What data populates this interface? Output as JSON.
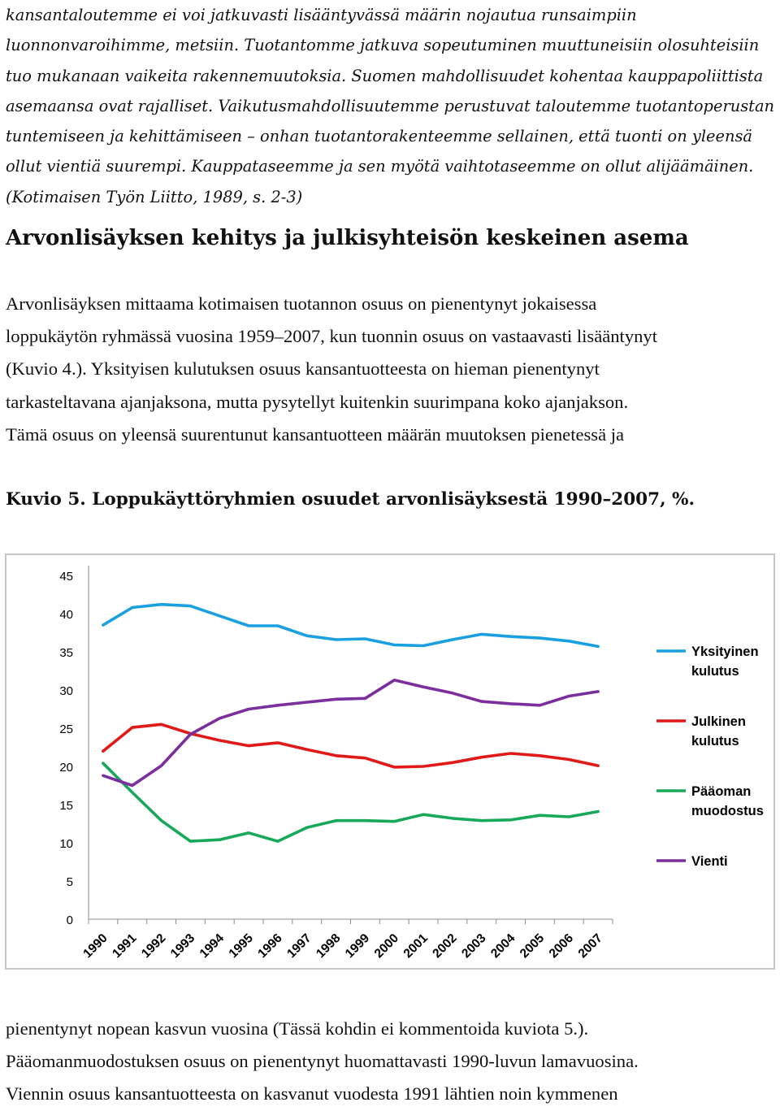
{
  "quote": {
    "lines": [
      "kansantaloutemme ei voi jatkuvasti lisääntyvässä määrin nojautua runsaimpiin",
      "luonnonvaroihimme, metsiin. Tuotantomme jatkuva sopeutuminen muuttuneisiin olosuhteisiin",
      "tuo mukanaan vaikeita rakennemuutoksia. Suomen mahdollisuudet kohentaa kauppapoliittista",
      "asemaansa ovat rajalliset. Vaikutusmahdollisuutemme perustuvat taloutemme tuotantoperustan",
      "tuntemiseen ja kehittämiseen – onhan tuotantorakenteemme sellainen, että tuonti on yleensä",
      "ollut vientiä suurempi. Kauppataseemme ja sen myötä vaihtotaseemme on ollut alijäämäinen.",
      "(Kotimaisen Työn Liitto, 1989, s. 2-3)"
    ]
  },
  "section_heading": "Arvonlisäyksen kehitys ja julkisyhteisön keskeinen asema",
  "paragraph1": {
    "lines": [
      "Arvonlisäyksen mittaama kotimaisen tuotannon osuus on pienentynyt jokaisessa",
      "loppukäytön ryhmässä vuosina 1959–2007, kun tuonnin osuus on vastaavasti lisääntynyt",
      "(Kuvio 4.). Yksityisen kulutuksen osuus kansantuotteesta on hieman pienentynyt",
      "tarkasteltavana ajanjaksona, mutta pysytellyt kuitenkin suurimpana koko ajanjakson.",
      "Tämä osuus on yleensä suurentunut kansantuotteen määrän muutoksen pienetessä ja"
    ]
  },
  "figure_caption": "Kuvio 5. Loppukäyttöryhmien osuudet arvonlisäyksestä 1990–2007, %.",
  "chart_data": {
    "type": "line",
    "title": "",
    "xlabel": "",
    "ylabel": "",
    "categories": [
      "1990",
      "1991",
      "1992",
      "1993",
      "1994",
      "1995",
      "1996",
      "1997",
      "1998",
      "1999",
      "2000",
      "2001",
      "2002",
      "2003",
      "2004",
      "2005",
      "2006",
      "2007"
    ],
    "y_ticks": [
      "0",
      "5",
      "10",
      "15",
      "20",
      "25",
      "30",
      "35",
      "40",
      "45"
    ],
    "ylim": [
      0,
      45
    ],
    "grid": false,
    "legend_position": "right",
    "series": [
      {
        "name_lines": [
          "Yksityinen",
          "kulutus"
        ],
        "color": "#1aa0e0",
        "values": [
          38.5,
          40.8,
          41.2,
          41.0,
          39.7,
          38.4,
          38.4,
          37.1,
          36.6,
          36.7,
          35.9,
          35.8,
          36.6,
          37.3,
          37.0,
          36.8,
          36.4,
          35.7
        ]
      },
      {
        "name_lines": [
          "Julkinen",
          "kulutus"
        ],
        "color": "#e01919",
        "values": [
          22.0,
          25.1,
          25.5,
          24.3,
          23.4,
          22.7,
          23.1,
          22.2,
          21.4,
          21.1,
          19.9,
          20.0,
          20.5,
          21.2,
          21.7,
          21.4,
          20.9,
          20.1
        ]
      },
      {
        "name_lines": [
          "Pääoman",
          "muodostus"
        ],
        "color": "#17a85a",
        "values": [
          20.4,
          16.6,
          12.9,
          10.2,
          10.4,
          11.3,
          10.2,
          12.0,
          12.9,
          12.9,
          12.8,
          13.7,
          13.2,
          12.9,
          13.0,
          13.6,
          13.4,
          14.1
        ]
      },
      {
        "name_lines": [
          "Vienti"
        ],
        "color": "#7a2f9c",
        "values": [
          18.8,
          17.5,
          20.1,
          24.2,
          26.3,
          27.5,
          28.0,
          28.4,
          28.8,
          28.9,
          31.3,
          30.4,
          29.6,
          28.5,
          28.2,
          28.0,
          29.2,
          29.8
        ]
      }
    ]
  },
  "paragraph2": {
    "lines": [
      "pienentynyt nopean kasvun vuosina (Tässä kohdin ei kommentoida kuviota 5.).",
      "Pääomanmuodostuksen osuus on pienentynyt huomattavasti 1990-luvun lamavuosina.",
      "Viennin osuus kansantuotteesta on kasvanut vuodesta 1991 lähtien noin kymmenen"
    ]
  }
}
